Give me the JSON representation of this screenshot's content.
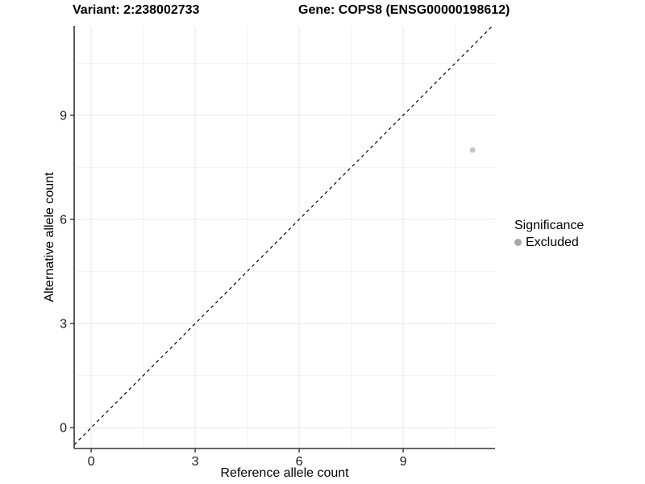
{
  "header": {
    "variant_title": "Variant: 2:238002733",
    "gene_title": "Gene: COPS8 (ENSG00000198612)"
  },
  "chart_data": {
    "type": "scatter",
    "xlabel": "Reference allele count",
    "ylabel": "Alternative allele count",
    "x_ticks": [
      0,
      3,
      6,
      9
    ],
    "y_ticks": [
      0,
      3,
      6,
      9
    ],
    "x_minor_ticks": [
      1.5,
      4.5,
      7.5,
      10.5
    ],
    "y_minor_ticks": [
      1.5,
      4.5,
      7.5,
      10.5
    ],
    "xlim": [
      -0.49,
      11.65
    ],
    "ylim": [
      -0.6,
      11.58
    ],
    "grid": true,
    "identity_line": {
      "slope": 1,
      "intercept": 0,
      "style": "dashed",
      "color": "#000000"
    },
    "series": [
      {
        "name": "Excluded",
        "points": [
          {
            "x": 11,
            "y": 8
          }
        ],
        "color": "#c2c2c2"
      }
    ],
    "legend": {
      "title": "Significance",
      "position": "right",
      "entries": [
        {
          "label": "Excluded",
          "color": "#a8a8a8"
        }
      ]
    }
  },
  "colors": {
    "panel_background": "#ffffff",
    "grid_major": "#e8e8e8",
    "grid_minor": "#f2f2f2",
    "axis_line": "#333333",
    "tick_mark": "#333333",
    "tick_label": "#1a1a1a"
  }
}
